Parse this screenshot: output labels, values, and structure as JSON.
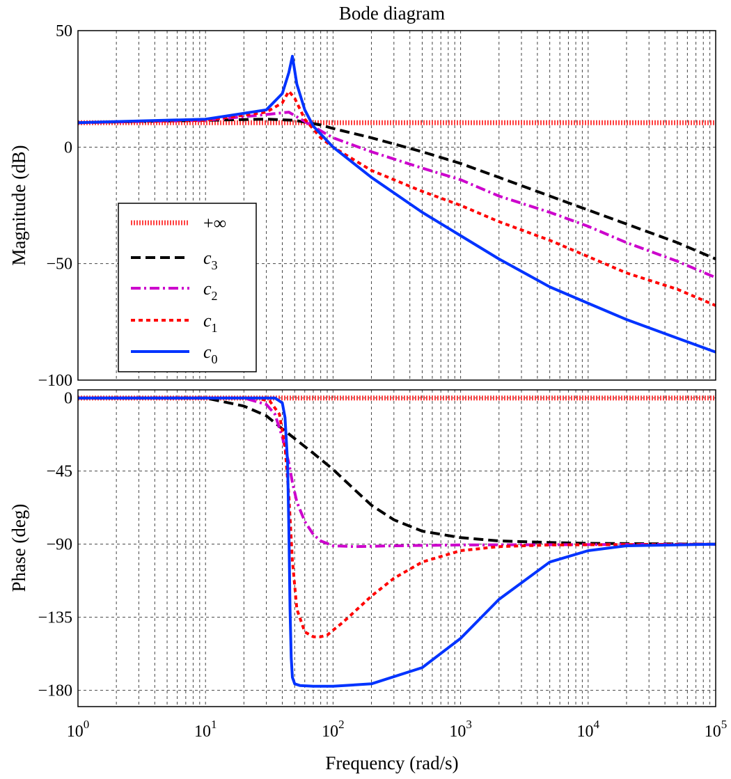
{
  "chart_data": {
    "type": "line",
    "title": "Bode diagram",
    "xlabel": "Frequency (rad/s)",
    "xscale": "log",
    "xlim": [
      1,
      100000
    ],
    "xticks": [
      {
        "base": "10",
        "exp": "0"
      },
      {
        "base": "10",
        "exp": "1"
      },
      {
        "base": "10",
        "exp": "2"
      },
      {
        "base": "10",
        "exp": "3"
      },
      {
        "base": "10",
        "exp": "4"
      },
      {
        "base": "10",
        "exp": "5"
      }
    ],
    "legend": {
      "placement": "left, inside magnitude panel",
      "entries": [
        {
          "key": "inf",
          "label": "+∞"
        },
        {
          "key": "c3",
          "base": "c",
          "sub": "3"
        },
        {
          "key": "c2",
          "base": "c",
          "sub": "2"
        },
        {
          "key": "c1",
          "base": "c",
          "sub": "1"
        },
        {
          "key": "c0",
          "base": "c",
          "sub": "0"
        }
      ]
    },
    "styles": {
      "inf": {
        "color": "#ff3333",
        "dash": "hatch"
      },
      "c3": {
        "color": "#000000",
        "dash": "14,7"
      },
      "c2": {
        "color": "#cc00cc",
        "dash": "14,5,3,5"
      },
      "c1": {
        "color": "#ff0000",
        "dash": "6,5"
      },
      "c0": {
        "color": "#0033ff",
        "dash": "solid"
      }
    },
    "panels": [
      {
        "name": "magnitude",
        "ylabel": "Magnitude (dB)",
        "ylim": [
          -100,
          50
        ],
        "yticks": [
          50,
          0,
          -50,
          -100
        ],
        "ytick_labels": [
          "50",
          "0",
          "−50",
          "−100"
        ],
        "gridlines_y": [
          0,
          -50
        ],
        "series": [
          {
            "key": "inf",
            "x": [
              1,
              100000
            ],
            "y": [
              10.5,
              10.5
            ]
          },
          {
            "key": "c3",
            "x": [
              1,
              10,
              30,
              50,
              80,
              100,
              200,
              500,
              1000,
              2000,
              5000,
              10000,
              20000,
              50000,
              100000
            ],
            "y": [
              10.5,
              11.5,
              12,
              11.5,
              9.5,
              8,
              4,
              -2,
              -7,
              -13,
              -21,
              -27,
              -33,
              -41,
              -48
            ]
          },
          {
            "key": "c2",
            "x": [
              1,
              10,
              30,
              45,
              60,
              80,
              100,
              200,
              500,
              1000,
              2000,
              5000,
              10000,
              20000,
              50000,
              100000
            ],
            "y": [
              10.5,
              11.5,
              14,
              15,
              11,
              7,
              4,
              -2,
              -9,
              -14,
              -21,
              -28,
              -34,
              -41,
              -49,
              -56
            ]
          },
          {
            "key": "c1",
            "x": [
              1,
              10,
              30,
              40,
              45,
              50,
              60,
              80,
              100,
              200,
              500,
              1000,
              2000,
              5000,
              10000,
              20000,
              50000,
              100000
            ],
            "y": [
              10.5,
              11.5,
              15,
              19,
              24,
              21,
              12,
              4,
              0,
              -10,
              -19,
              -25,
              -32,
              -40,
              -47,
              -54,
              -61,
              -68
            ]
          },
          {
            "key": "c0",
            "x": [
              1,
              10,
              30,
              40,
              45,
              48,
              52,
              60,
              70,
              100,
              200,
              500,
              1000,
              2000,
              5000,
              10000,
              20000,
              50000,
              100000
            ],
            "y": [
              10.5,
              12,
              16,
              23,
              32,
              39,
              27,
              16,
              9,
              0,
              -13,
              -28,
              -38,
              -48,
              -60,
              -67,
              -74,
              -82,
              -88
            ]
          }
        ]
      },
      {
        "name": "phase",
        "ylabel": "Phase (deg)",
        "ylim": [
          -190,
          5
        ],
        "yticks": [
          0,
          -45,
          -90,
          -135,
          -180
        ],
        "ytick_labels": [
          "0",
          "−45",
          "−90",
          "−135",
          "−180"
        ],
        "gridlines_y": [
          0,
          -45,
          -90,
          -135,
          -180
        ],
        "series": [
          {
            "key": "inf",
            "x": [
              1,
              100000
            ],
            "y": [
              0,
              0
            ]
          },
          {
            "key": "c3",
            "x": [
              1,
              10,
              20,
              30,
              40,
              50,
              70,
              100,
              150,
              200,
              300,
              500,
              1000,
              2000,
              5000,
              10000,
              100000
            ],
            "y": [
              0,
              0,
              -5,
              -11,
              -19,
              -25,
              -34,
              -44,
              -57,
              -66,
              -75,
              -82,
              -86,
              -88,
              -89,
              -89.5,
              -90
            ]
          },
          {
            "key": "c2",
            "x": [
              1,
              20,
              30,
              35,
              40,
              45,
              48,
              52,
              60,
              70,
              80,
              100,
              150,
              300,
              1000,
              100000
            ],
            "y": [
              0,
              0,
              -4,
              -10,
              -24,
              -40,
              -52,
              -64,
              -76,
              -84,
              -88,
              -91,
              -91.5,
              -91,
              -90.5,
              -90
            ]
          },
          {
            "key": "c1",
            "x": [
              1,
              25,
              32,
              38,
              42,
              45,
              48,
              52,
              60,
              70,
              80,
              90,
              100,
              120,
              150,
              200,
              300,
              500,
              1000,
              2000,
              5000,
              100000
            ],
            "y": [
              0,
              0,
              -2,
              -10,
              -30,
              -60,
              -100,
              -130,
              -144,
              -147,
              -147,
              -146,
              -143,
              -138,
              -131,
              -122,
              -111,
              -101,
              -94,
              -91.5,
              -90.5,
              -90
            ]
          },
          {
            "key": "c0",
            "x": [
              1,
              35,
              40,
              42,
              44,
              45,
              46,
              47,
              48,
              50,
              55,
              70,
              100,
              200,
              500,
              1000,
              2000,
              5000,
              10000,
              20000,
              100000
            ],
            "y": [
              0,
              0,
              -3,
              -12,
              -40,
              -80,
              -130,
              -160,
              -172,
              -176,
              -177,
              -177.5,
              -177.5,
              -176,
              -166,
              -148,
              -124,
              -101,
              -94,
              -91,
              -90
            ]
          }
        ]
      }
    ]
  }
}
